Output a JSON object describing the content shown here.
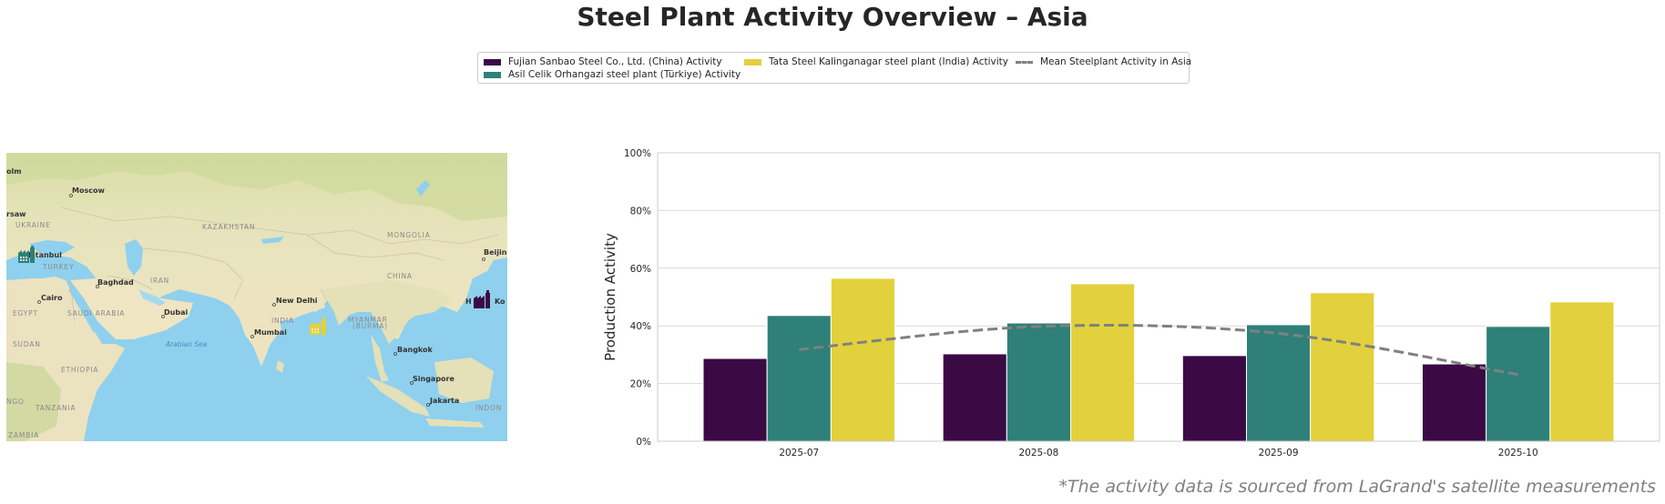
{
  "title": "Steel Plant Activity Overview – Asia",
  "footnote": "*The activity data is sourced from LaGrand's satellite measurements",
  "legend": {
    "items": [
      {
        "label": "Fujian Sanbao Steel Co., Ltd. (China) Activity",
        "color": "#3b0a45",
        "kind": "bar"
      },
      {
        "label": "Asil Celik Orhangazi steel plant (Türkiye) Activity",
        "color": "#2e8079",
        "kind": "bar"
      },
      {
        "label": "Tata Steel Kalinganagar steel plant (India) Activity",
        "color": "#e2d13c",
        "kind": "bar"
      },
      {
        "label": "Mean Steelplant Activity in Asia",
        "color": "#808080",
        "kind": "dashed-line"
      }
    ]
  },
  "map": {
    "labels": {
      "countries": [
        "UKRAINE",
        "KAZAKHSTAN",
        "MONGOLIA",
        "TURKEY",
        "IRAN",
        "CHINA",
        "EGYPT",
        "SAUDI ARABIA",
        "INDIA",
        "MYANMAR",
        "(BURMA)",
        "SUDAN",
        "ETHIOPIA",
        "TANZANIA",
        "ZAMBIA",
        "INDON",
        "NGO"
      ],
      "cities": [
        "Moscow",
        "Istanbul",
        "Baghdad",
        "Cairo",
        "Dubai",
        "New Delhi",
        "Mumbai",
        "Bangkok",
        "Singapore",
        "Jakarta",
        "Beijing",
        "H",
        "Ko",
        "rsaw",
        "olm"
      ],
      "seas": [
        "Arabian Sea"
      ]
    },
    "markers": [
      {
        "name": "Asil Celik Orhangazi steel plant",
        "icon": "factory-icon",
        "color": "#2e8079"
      },
      {
        "name": "Tata Steel Kalinganagar steel plant",
        "icon": "factory-icon",
        "color": "#e2d13c"
      },
      {
        "name": "Fujian Sanbao Steel Co., Ltd.",
        "icon": "factory-icon",
        "color": "#3b0a45"
      }
    ]
  },
  "chart_data": {
    "type": "bar",
    "title": "",
    "xlabel": "",
    "ylabel": "Production Activity",
    "ylim": [
      0,
      100
    ],
    "yticks": [
      "0%",
      "20%",
      "40%",
      "60%",
      "80%",
      "100%"
    ],
    "grid": true,
    "legend_position": "top-center",
    "categories": [
      "2025-07",
      "2025-08",
      "2025-09",
      "2025-10"
    ],
    "series": [
      {
        "name": "Fujian Sanbao Steel Co., Ltd. (China) Activity",
        "color": "#3b0a45",
        "values": [
          28.7,
          30.3,
          29.7,
          26.8
        ]
      },
      {
        "name": "Asil Celik Orhangazi steel plant (Türkiye) Activity",
        "color": "#2e8079",
        "values": [
          43.6,
          41.0,
          40.4,
          39.8
        ]
      },
      {
        "name": "Tata Steel Kalinganagar steel plant (India) Activity",
        "color": "#e2d13c",
        "values": [
          56.5,
          54.6,
          51.5,
          48.3
        ]
      }
    ],
    "line_series": {
      "name": "Mean Steelplant Activity in Asia",
      "color": "#808080",
      "style": "dashed",
      "smooth": true,
      "values": [
        31.8,
        39.8,
        37.4,
        23.1
      ]
    }
  }
}
